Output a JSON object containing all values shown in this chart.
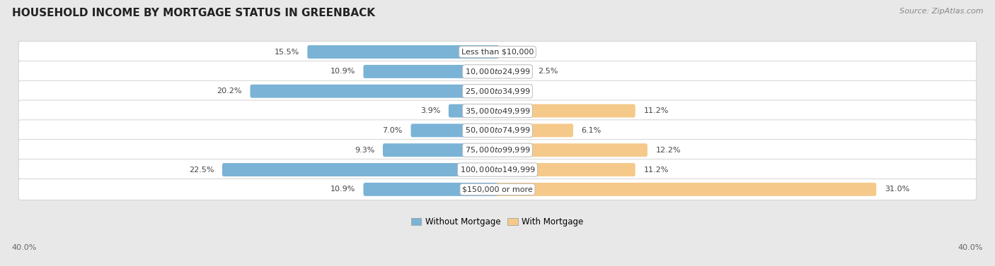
{
  "title": "HOUSEHOLD INCOME BY MORTGAGE STATUS IN GREENBACK",
  "source": "Source: ZipAtlas.com",
  "categories": [
    "Less than $10,000",
    "$10,000 to $24,999",
    "$25,000 to $34,999",
    "$35,000 to $49,999",
    "$50,000 to $74,999",
    "$75,000 to $99,999",
    "$100,000 to $149,999",
    "$150,000 or more"
  ],
  "without_mortgage": [
    15.5,
    10.9,
    20.2,
    3.9,
    7.0,
    9.3,
    22.5,
    10.9
  ],
  "with_mortgage": [
    0.0,
    2.5,
    0.0,
    11.2,
    6.1,
    12.2,
    11.2,
    31.0
  ],
  "without_mortgage_color": "#7ab3d6",
  "with_mortgage_color": "#f5c98a",
  "xlim": 40.0,
  "background_color": "#e8e8e8",
  "row_bg_color": "#f0f0f0",
  "row_bg_color_alt": "#e4e4e4",
  "legend_without": "Without Mortgage",
  "legend_with": "With Mortgage",
  "axis_label_left": "40.0%",
  "axis_label_right": "40.0%",
  "title_fontsize": 11,
  "label_fontsize": 8,
  "category_fontsize": 8,
  "source_fontsize": 8
}
